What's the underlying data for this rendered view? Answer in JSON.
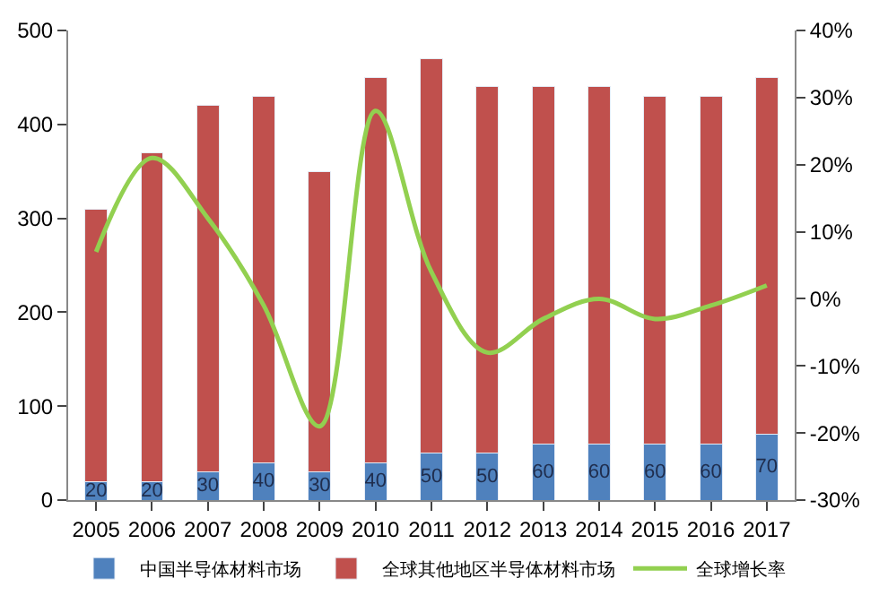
{
  "chart_data": {
    "type": "bar",
    "stacked": true,
    "categories": [
      "2005",
      "2006",
      "2007",
      "2008",
      "2009",
      "2010",
      "2011",
      "2012",
      "2013",
      "2014",
      "2015",
      "2016",
      "2017"
    ],
    "series": [
      {
        "name": "中国半导体材料市场",
        "color": "#4f81bd",
        "values": [
          20,
          20,
          30,
          40,
          30,
          40,
          50,
          50,
          60,
          60,
          60,
          60,
          70
        ],
        "value_labels": [
          "20",
          "20",
          "30",
          "40",
          "30",
          "40",
          "50",
          "50",
          "60",
          "60",
          "60",
          "60",
          "70"
        ]
      },
      {
        "name": "全球其他地区半导体材料市场",
        "color": "#c0504d",
        "values": [
          290,
          350,
          390,
          390,
          320,
          410,
          420,
          390,
          380,
          380,
          370,
          370,
          380
        ]
      },
      {
        "name": "全球增长率",
        "type": "line",
        "axis": "y2",
        "color": "#92d050",
        "values": [
          7,
          21,
          12,
          -1,
          -19,
          28,
          4,
          -8,
          -3,
          0,
          -3,
          -1,
          2
        ]
      }
    ],
    "ylim": [
      0,
      500
    ],
    "yticks": [
      0,
      100,
      200,
      300,
      400,
      500
    ],
    "y2lim": [
      -30,
      40
    ],
    "y2ticks": [
      {
        "value": -30,
        "label": "-30%"
      },
      {
        "value": -20,
        "label": "-20%"
      },
      {
        "value": -10,
        "label": "-10%"
      },
      {
        "value": 0,
        "label": "0%"
      },
      {
        "value": 10,
        "label": "10%"
      },
      {
        "value": 20,
        "label": "20%"
      },
      {
        "value": 30,
        "label": "30%"
      },
      {
        "value": 40,
        "label": "40%"
      }
    ],
    "legend": "bottom"
  }
}
